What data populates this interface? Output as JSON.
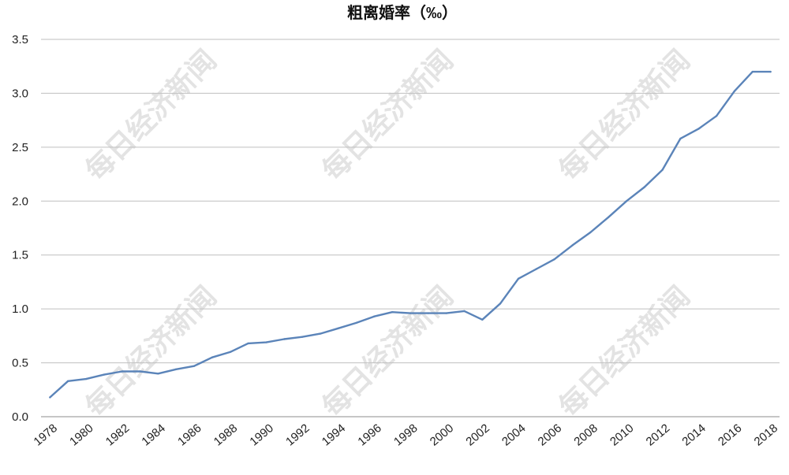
{
  "chart_data": {
    "type": "line",
    "title": "粗离婚率（‰）",
    "xlabel": "",
    "ylabel": "",
    "ylim": [
      0,
      3.5
    ],
    "yticks": [
      "0.0",
      "0.5",
      "1.0",
      "1.5",
      "2.0",
      "2.5",
      "3.0",
      "3.5"
    ],
    "xticks": [
      "1978",
      "1980",
      "1982",
      "1984",
      "1986",
      "1988",
      "1990",
      "1992",
      "1994",
      "1996",
      "1998",
      "2000",
      "2002",
      "2004",
      "2006",
      "2008",
      "2010",
      "2012",
      "2014",
      "2016",
      "2018"
    ],
    "grid": true,
    "legend": "none",
    "x": [
      1978,
      1979,
      1980,
      1981,
      1982,
      1983,
      1984,
      1985,
      1986,
      1987,
      1988,
      1989,
      1990,
      1991,
      1992,
      1993,
      1994,
      1995,
      1996,
      1997,
      1998,
      1999,
      2000,
      2001,
      2002,
      2003,
      2004,
      2005,
      2006,
      2007,
      2008,
      2009,
      2010,
      2011,
      2012,
      2013,
      2014,
      2015,
      2016,
      2017,
      2018
    ],
    "series": [
      {
        "values": [
          0.18,
          0.33,
          0.35,
          0.39,
          0.42,
          0.42,
          0.4,
          0.44,
          0.47,
          0.55,
          0.6,
          0.68,
          0.69,
          0.72,
          0.74,
          0.77,
          0.82,
          0.87,
          0.93,
          0.97,
          0.96,
          0.96,
          0.96,
          0.98,
          0.9,
          1.05,
          1.28,
          1.37,
          1.46,
          1.59,
          1.71,
          1.85,
          2.0,
          2.13,
          2.29,
          2.58,
          2.67,
          2.79,
          3.02,
          3.2,
          3.2
        ]
      }
    ],
    "colors": {
      "line": "#5b84b9"
    },
    "watermark": "每日经济新闻"
  }
}
